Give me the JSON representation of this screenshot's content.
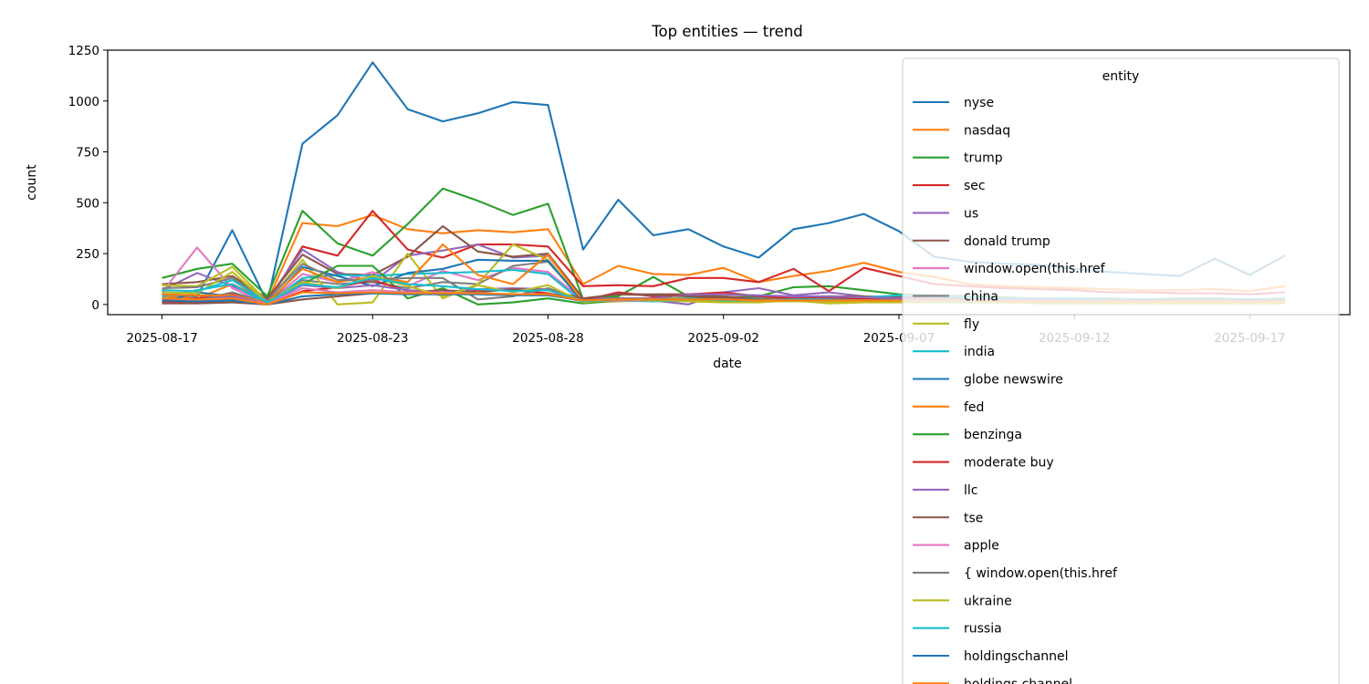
{
  "chart_data": {
    "type": "line",
    "title": "Top entities — trend",
    "xlabel": "date",
    "ylabel": "count",
    "ylim": [
      -50,
      1250
    ],
    "y_ticks": [
      0,
      250,
      500,
      750,
      1000,
      1250
    ],
    "x_tick_labels": [
      "2025-08-17",
      "2025-08-23",
      "2025-08-28",
      "2025-09-02",
      "2025-09-07",
      "2025-09-12",
      "2025-09-17"
    ],
    "x_dates": [
      "2025-08-17",
      "2025-08-18",
      "2025-08-19",
      "2025-08-20",
      "2025-08-21",
      "2025-08-22",
      "2025-08-23",
      "2025-08-24",
      "2025-08-25",
      "2025-08-26",
      "2025-08-27",
      "2025-08-28",
      "2025-08-29",
      "2025-08-30",
      "2025-08-31",
      "2025-09-01",
      "2025-09-02",
      "2025-09-03",
      "2025-09-04",
      "2025-09-05",
      "2025-09-06",
      "2025-09-07",
      "2025-09-08",
      "2025-09-09",
      "2025-09-10",
      "2025-09-11",
      "2025-09-12",
      "2025-09-13",
      "2025-09-14",
      "2025-09-15",
      "2025-09-16",
      "2025-09-17",
      "2025-09-18",
      "2025-09-19"
    ],
    "grid": false,
    "legend_title": "entity",
    "legend_position": "right",
    "series": [
      {
        "name": "nyse",
        "color": "#1f77b4",
        "values": [
          50,
          40,
          365,
          10,
          790,
          930,
          1190,
          960,
          900,
          940,
          995,
          980,
          270,
          515,
          340,
          370,
          285,
          230,
          370,
          400,
          445,
          360,
          235,
          210,
          200,
          195,
          175,
          160,
          150,
          140,
          225,
          145,
          240,
          null
        ]
      },
      {
        "name": "nasdaq",
        "color": "#ff7f0e",
        "values": [
          40,
          30,
          100,
          15,
          400,
          385,
          440,
          370,
          350,
          365,
          355,
          370,
          100,
          190,
          150,
          145,
          180,
          110,
          140,
          165,
          205,
          160,
          135,
          100,
          90,
          85,
          80,
          75,
          70,
          70,
          75,
          65,
          90,
          null
        ]
      },
      {
        "name": "trump",
        "color": "#2ca02c",
        "values": [
          130,
          175,
          200,
          40,
          460,
          300,
          240,
          395,
          570,
          510,
          440,
          495,
          25,
          40,
          135,
          40,
          35,
          40,
          85,
          90,
          70,
          50,
          45,
          40,
          35,
          30,
          30,
          30,
          25,
          30,
          30,
          25,
          30,
          null
        ]
      },
      {
        "name": "sec",
        "color": "#d62728",
        "values": [
          20,
          30,
          50,
          5,
          285,
          240,
          460,
          270,
          230,
          295,
          295,
          285,
          90,
          95,
          90,
          130,
          130,
          110,
          175,
          65,
          180,
          140,
          100,
          90,
          80,
          75,
          70,
          60,
          60,
          55,
          55,
          50,
          60,
          null
        ]
      },
      {
        "name": "us",
        "color": "#9467bd",
        "values": [
          70,
          155,
          90,
          20,
          270,
          160,
          110,
          240,
          265,
          295,
          230,
          240,
          30,
          30,
          20,
          0,
          60,
          80,
          45,
          60,
          40,
          35,
          35,
          30,
          30,
          25,
          25,
          25,
          25,
          20,
          20,
          20,
          25,
          null
        ]
      },
      {
        "name": "donald trump",
        "color": "#8c564b",
        "values": [
          100,
          110,
          140,
          30,
          245,
          150,
          145,
          235,
          385,
          260,
          235,
          250,
          30,
          50,
          50,
          50,
          40,
          30,
          30,
          40,
          40,
          35,
          30,
          30,
          25,
          20,
          20,
          20,
          20,
          20,
          20,
          20,
          20,
          null
        ]
      },
      {
        "name": "window.open(this.href",
        "color": "#e377c2",
        "values": [
          60,
          280,
          80,
          5,
          150,
          110,
          160,
          90,
          165,
          120,
          180,
          160,
          20,
          30,
          25,
          30,
          30,
          25,
          30,
          30,
          25,
          25,
          20,
          20,
          20,
          20,
          20,
          15,
          15,
          15,
          15,
          15,
          15,
          null
        ]
      },
      {
        "name": "china",
        "color": "#7f7f7f",
        "values": [
          30,
          20,
          60,
          10,
          120,
          100,
          110,
          80,
          110,
          100,
          190,
          210,
          20,
          25,
          30,
          20,
          25,
          20,
          25,
          30,
          25,
          20,
          20,
          20,
          20,
          15,
          15,
          15,
          15,
          15,
          15,
          15,
          15,
          null
        ]
      },
      {
        "name": "fly",
        "color": "#bcbd22",
        "values": [
          95,
          90,
          185,
          15,
          220,
          0,
          10,
          250,
          30,
          100,
          295,
          220,
          10,
          15,
          20,
          15,
          10,
          10,
          20,
          5,
          10,
          10,
          10,
          10,
          10,
          5,
          5,
          5,
          5,
          5,
          5,
          5,
          5,
          null
        ]
      },
      {
        "name": "india",
        "color": "#17becf",
        "values": [
          40,
          70,
          100,
          0,
          130,
          145,
          140,
          150,
          155,
          160,
          170,
          150,
          10,
          20,
          15,
          20,
          25,
          30,
          20,
          40,
          35,
          45,
          40,
          35,
          30,
          30,
          30,
          25,
          25,
          25,
          25,
          25,
          25,
          null
        ]
      },
      {
        "name": "globe newswire",
        "color": "#1f77b4",
        "values": [
          10,
          60,
          40,
          0,
          185,
          140,
          90,
          155,
          175,
          220,
          215,
          215,
          10,
          20,
          20,
          30,
          30,
          25,
          25,
          20,
          20,
          20,
          20,
          20,
          20,
          20,
          20,
          20,
          20,
          20,
          20,
          20,
          20,
          null
        ]
      },
      {
        "name": "fed",
        "color": "#ff7f0e",
        "values": [
          50,
          45,
          45,
          10,
          175,
          110,
          135,
          110,
          295,
          145,
          100,
          245,
          15,
          30,
          30,
          30,
          25,
          25,
          25,
          25,
          25,
          25,
          25,
          20,
          20,
          20,
          20,
          20,
          20,
          20,
          20,
          20,
          20,
          null
        ]
      },
      {
        "name": "benzinga",
        "color": "#2ca02c",
        "values": [
          20,
          15,
          30,
          0,
          100,
          190,
          190,
          30,
          80,
          0,
          10,
          30,
          5,
          20,
          20,
          30,
          25,
          20,
          20,
          15,
          15,
          15,
          15,
          10,
          10,
          10,
          10,
          10,
          10,
          10,
          10,
          10,
          10,
          null
        ]
      },
      {
        "name": "moderate buy",
        "color": "#d62728",
        "values": [
          15,
          10,
          20,
          0,
          65,
          85,
          120,
          65,
          60,
          70,
          70,
          55,
          20,
          60,
          40,
          50,
          60,
          40,
          30,
          30,
          30,
          25,
          20,
          20,
          20,
          20,
          20,
          20,
          20,
          20,
          20,
          20,
          20,
          null
        ]
      },
      {
        "name": "llc",
        "color": "#9467bd",
        "values": [
          30,
          25,
          40,
          5,
          95,
          80,
          95,
          70,
          60,
          75,
          80,
          75,
          20,
          30,
          30,
          50,
          50,
          45,
          40,
          40,
          35,
          30,
          25,
          25,
          25,
          25,
          20,
          20,
          20,
          20,
          20,
          20,
          20,
          null
        ]
      },
      {
        "name": "tse",
        "color": "#8c564b",
        "values": [
          5,
          5,
          10,
          0,
          25,
          40,
          55,
          60,
          70,
          60,
          75,
          70,
          30,
          50,
          45,
          40,
          30,
          25,
          20,
          20,
          20,
          20,
          15,
          15,
          15,
          15,
          15,
          15,
          15,
          15,
          15,
          15,
          15,
          null
        ]
      },
      {
        "name": "apple",
        "color": "#e377c2",
        "values": [
          25,
          20,
          30,
          5,
          80,
          60,
          70,
          60,
          60,
          55,
          50,
          50,
          15,
          20,
          20,
          20,
          25,
          20,
          20,
          20,
          20,
          20,
          15,
          15,
          15,
          15,
          15,
          15,
          15,
          15,
          15,
          15,
          15,
          null
        ]
      },
      {
        "name": "{ window.open(this.href",
        "color": "#7f7f7f",
        "values": [
          80,
          85,
          130,
          20,
          200,
          120,
          120,
          130,
          130,
          25,
          40,
          80,
          20,
          30,
          25,
          25,
          25,
          20,
          20,
          20,
          20,
          20,
          15,
          15,
          15,
          15,
          15,
          15,
          15,
          15,
          15,
          15,
          15,
          null
        ]
      },
      {
        "name": "ukraine",
        "color": "#bcbd22",
        "values": [
          60,
          55,
          160,
          10,
          110,
          80,
          140,
          90,
          40,
          95,
          60,
          95,
          10,
          25,
          20,
          20,
          15,
          15,
          15,
          15,
          15,
          15,
          10,
          10,
          10,
          10,
          10,
          10,
          10,
          10,
          10,
          10,
          10,
          null
        ]
      },
      {
        "name": "russia",
        "color": "#17becf",
        "values": [
          70,
          65,
          120,
          10,
          100,
          85,
          130,
          100,
          90,
          75,
          65,
          70,
          15,
          25,
          25,
          30,
          20,
          20,
          25,
          25,
          20,
          20,
          15,
          15,
          15,
          15,
          15,
          15,
          15,
          15,
          15,
          15,
          15,
          null
        ]
      },
      {
        "name": "holdingschannel",
        "color": "#1f77b4",
        "values": [
          20,
          15,
          20,
          0,
          40,
          50,
          55,
          50,
          50,
          50,
          45,
          45,
          20,
          25,
          25,
          25,
          25,
          20,
          20,
          20,
          20,
          20,
          20,
          20,
          15,
          15,
          15,
          15,
          15,
          15,
          15,
          15,
          15,
          null
        ]
      },
      {
        "name": "holdings channel",
        "color": "#ff7f0e",
        "values": [
          30,
          25,
          30,
          0,
          60,
          55,
          60,
          55,
          55,
          55,
          50,
          50,
          20,
          25,
          25,
          25,
          25,
          20,
          20,
          20,
          20,
          20,
          20,
          20,
          15,
          15,
          15,
          15,
          15,
          15,
          15,
          15,
          15,
          null
        ]
      }
    ]
  }
}
